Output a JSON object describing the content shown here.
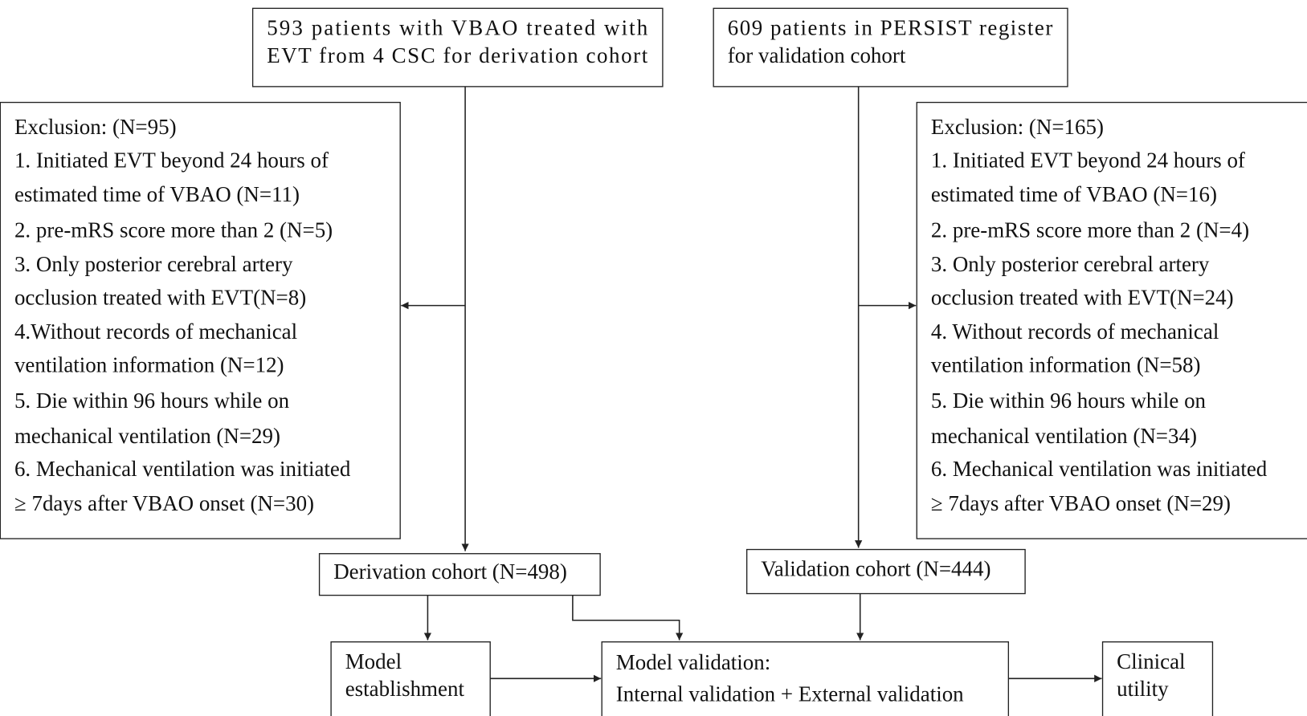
{
  "nodes": [
    {
      "lines": [
        "593 patients with VBAO treated with",
        "EVT from 4 CSC for derivation cohort"
      ]
    },
    {
      "lines": [
        "609 patients in PERSIST register",
        "for validation cohort"
      ]
    },
    {
      "lines": [
        "Exclusion: (N=95)",
        "1. Initiated EVT beyond 24 hours of",
        "estimated time of VBAO (N=11)",
        "2. pre-mRS score more than 2 (N=5)",
        "3. Only posterior cerebral artery",
        "occlusion treated with EVT(N=8)",
        "4.Without records of mechanical",
        "ventilation information (N=12)",
        "5. Die within 96 hours while on",
        "mechanical ventilation (N=29)",
        "6. Mechanical ventilation was initiated",
        "≥ 7days after VBAO onset (N=30)"
      ]
    },
    {
      "lines": [
        "Exclusion: (N=165)",
        "1. Initiated EVT beyond 24 hours of",
        "estimated time of VBAO (N=16)",
        "2. pre-mRS score more than 2 (N=4)",
        "3. Only posterior cerebral artery",
        "occlusion treated with EVT(N=24)",
        "4. Without records of mechanical",
        "ventilation information (N=58)",
        "5. Die within 96 hours while on",
        "mechanical ventilation (N=34)",
        "6. Mechanical ventilation was initiated",
        "≥ 7days after VBAO onset (N=29)"
      ]
    },
    {
      "lines": [
        "Derivation cohort (N=498)"
      ]
    },
    {
      "lines": [
        "Validation cohort (N=444)"
      ]
    },
    {
      "lines": [
        "Model",
        "establishment"
      ]
    },
    {
      "lines": [
        "Model validation:",
        "Internal validation + External validation"
      ]
    },
    {
      "lines": [
        "Clinical",
        "utility"
      ]
    }
  ]
}
